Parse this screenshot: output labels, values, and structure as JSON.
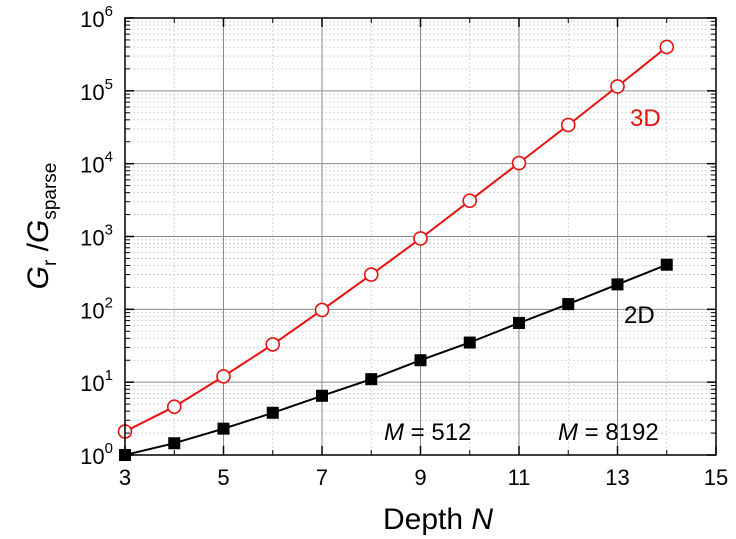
{
  "chart_data": {
    "type": "line",
    "xlabel": {
      "text": "Depth ",
      "var": "N"
    },
    "ylabel": {
      "G": "G",
      "r": "r",
      "slash": " /",
      "G2": "G",
      "sparse": "sparse"
    },
    "xlim": [
      3,
      15
    ],
    "ylim": [
      1,
      1000000
    ],
    "yscale": "log",
    "x_ticks": [
      "3",
      "5",
      "7",
      "9",
      "11",
      "13",
      "15"
    ],
    "y_ticks": [
      {
        "base": "10",
        "exp": "0"
      },
      {
        "base": "10",
        "exp": "1"
      },
      {
        "base": "10",
        "exp": "2"
      },
      {
        "base": "10",
        "exp": "3"
      },
      {
        "base": "10",
        "exp": "4"
      },
      {
        "base": "10",
        "exp": "5"
      },
      {
        "base": "10",
        "exp": "6"
      }
    ],
    "grid": true,
    "series": [
      {
        "name": "3D",
        "color": "#e8110f",
        "marker": "open-circle",
        "x": [
          3,
          4,
          5,
          6,
          7,
          8,
          9,
          10,
          11,
          12,
          13,
          14
        ],
        "y": [
          2.1,
          4.6,
          12,
          33,
          98,
          300,
          940,
          3100,
          10200,
          34000,
          115000,
          400000
        ]
      },
      {
        "name": "2D",
        "color": "#000000",
        "marker": "filled-square",
        "x": [
          3,
          4,
          5,
          6,
          7,
          8,
          9,
          10,
          11,
          12,
          13,
          14
        ],
        "y": [
          1.0,
          1.45,
          2.3,
          3.8,
          6.5,
          11,
          20,
          35,
          65,
          118,
          220,
          410
        ]
      }
    ],
    "annotations": [
      {
        "var": "M",
        "text": " = 512"
      },
      {
        "var": "M",
        "text": " = 8192"
      }
    ]
  }
}
